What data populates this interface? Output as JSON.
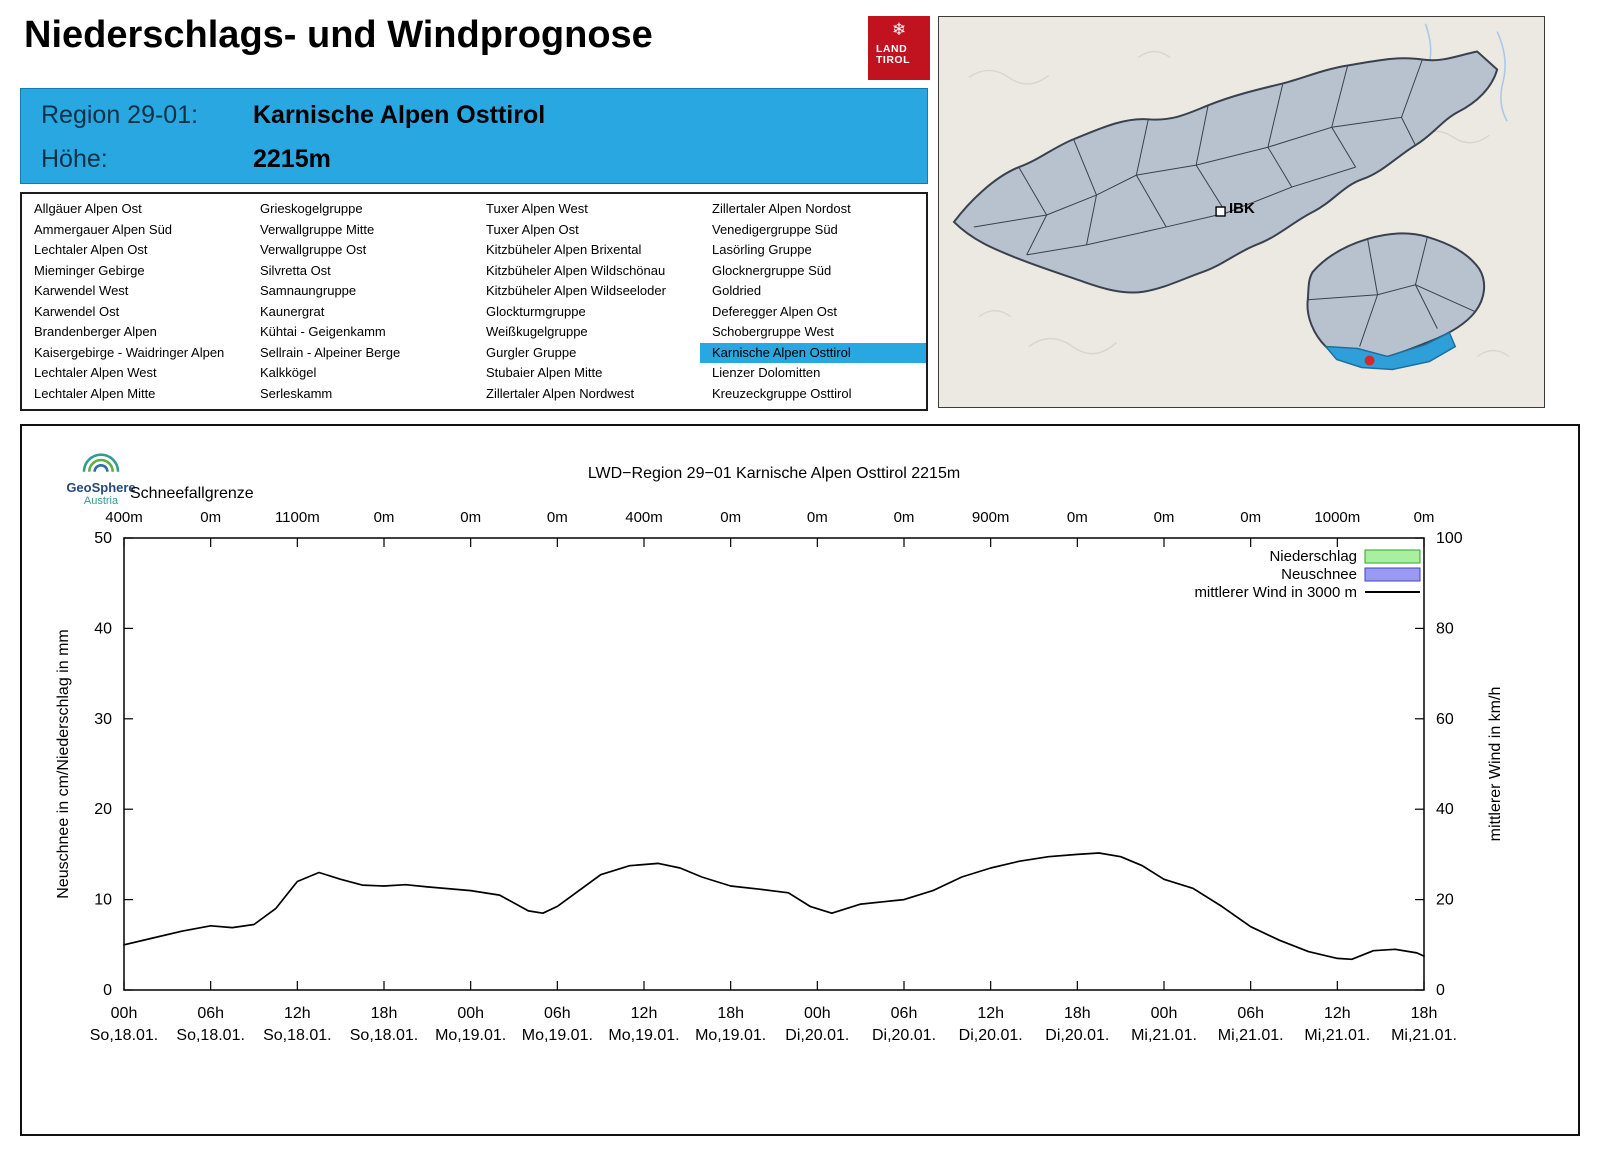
{
  "theme": {
    "accent_blue": "#29a7e0",
    "logo_red": "#c1121f",
    "map_region_fill": "#b8c1ce",
    "map_highlight": "#2f9fd9",
    "selected_dot": "#cf2b2b"
  },
  "page": {
    "title": "Niederschlags- und Windprognose"
  },
  "logo": {
    "land": "LAND",
    "tirol": "TIROL"
  },
  "region_header": {
    "region_label": "Region 29-01:",
    "region_value": "Karnische Alpen Osttirol",
    "hoehe_label": "Höhe:",
    "hoehe_value": "2215m"
  },
  "map": {
    "label_ibk": "IBK"
  },
  "geosphere": {
    "line1": "GeoSphere",
    "line2": "Austria"
  },
  "region_list": {
    "selected": "Karnische Alpen Osttirol",
    "columns": [
      [
        "Allgäuer Alpen Ost",
        "Ammergauer Alpen Süd",
        "Lechtaler Alpen Ost",
        "Mieminger Gebirge",
        "Karwendel West",
        "Karwendel Ost",
        "Brandenberger Alpen",
        "Kaisergebirge - Waidringer Alpen",
        "Lechtaler Alpen West",
        "Lechtaler Alpen Mitte"
      ],
      [
        "Grieskogelgruppe",
        "Verwallgruppe Mitte",
        "Verwallgruppe Ost",
        "Silvretta Ost",
        "Samnaungruppe",
        "Kaunergrat",
        "Kühtai - Geigenkamm",
        "Sellrain - Alpeiner Berge",
        "Kalkkögel",
        "Serleskamm"
      ],
      [
        "Tuxer Alpen West",
        "Tuxer Alpen Ost",
        "Kitzbüheler Alpen Brixental",
        "Kitzbüheler Alpen Wildschönau",
        "Kitzbüheler Alpen Wildseeloder",
        "Glockturmgruppe",
        "Weißkugelgruppe",
        "Gurgler Gruppe",
        "Stubaier Alpen Mitte",
        "Zillertaler Alpen Nordwest"
      ],
      [
        "Zillertaler Alpen Nordost",
        "Venedigergruppe Süd",
        "Lasörling Gruppe",
        "Glocknergruppe Süd",
        "Goldried",
        "Deferegger Alpen Ost",
        "Schobergruppe West",
        "Karnische Alpen Osttirol",
        "Lienzer Dolomitten",
        "Kreuzeckgruppe Osttirol"
      ]
    ]
  },
  "chart_data": {
    "type": "line",
    "title": "LWD−Region 29−01 Karnische Alpen Osttirol 2215m",
    "snowline_label": "Schneefallgrenze",
    "snowline_values": [
      "400m",
      "0m",
      "1100m",
      "0m",
      "0m",
      "0m",
      "400m",
      "0m",
      "0m",
      "0m",
      "900m",
      "0m",
      "0m",
      "0m",
      "1000m",
      "0m"
    ],
    "x_tick_times": [
      "00h",
      "06h",
      "12h",
      "18h",
      "00h",
      "06h",
      "12h",
      "18h",
      "00h",
      "06h",
      "12h",
      "18h",
      "00h",
      "06h",
      "12h",
      "18h"
    ],
    "x_tick_dates": [
      "So,18.01.",
      "So,18.01.",
      "So,18.01.",
      "So,18.01.",
      "Mo,19.01.",
      "Mo,19.01.",
      "Mo,19.01.",
      "Mo,19.01.",
      "Di,20.01.",
      "Di,20.01.",
      "Di,20.01.",
      "Di,20.01.",
      "Mi,21.01.",
      "Mi,21.01.",
      "Mi,21.01.",
      "Mi,21.01."
    ],
    "x_hours_range": [
      0,
      90
    ],
    "ylabel_left": "Neuschnee in cm/Niederschlag in mm",
    "ylabel_right": "mittlerer Wind in km/h",
    "ylim_left": [
      0,
      50
    ],
    "ylim_right": [
      0,
      100
    ],
    "yticks_left": [
      0,
      10,
      20,
      30,
      40,
      50
    ],
    "yticks_right": [
      0,
      20,
      40,
      60,
      80,
      100
    ],
    "grid": false,
    "legend_position": "top-right",
    "legend": [
      {
        "label": "Niederschlag",
        "type": "box",
        "fill": "#a8f0a0",
        "stroke": "#35a02a"
      },
      {
        "label": "Neuschnee",
        "type": "box",
        "fill": "#9a9af2",
        "stroke": "#4040c8"
      },
      {
        "label": "mittlerer Wind in 3000 m",
        "type": "line",
        "stroke": "#000000"
      }
    ],
    "series": [
      {
        "name": "Niederschlag",
        "axis": "left",
        "unit": "mm",
        "points": []
      },
      {
        "name": "Neuschnee",
        "axis": "left",
        "unit": "cm",
        "points": []
      },
      {
        "name": "mittlerer Wind in 3000 m",
        "axis": "right",
        "unit": "km/h",
        "points": [
          [
            0,
            10
          ],
          [
            2,
            11.5
          ],
          [
            4,
            13
          ],
          [
            6,
            14.2
          ],
          [
            7.5,
            13.8
          ],
          [
            9,
            14.5
          ],
          [
            10.5,
            18
          ],
          [
            12,
            24
          ],
          [
            13.5,
            26
          ],
          [
            15,
            24.5
          ],
          [
            16.5,
            23.2
          ],
          [
            18,
            23
          ],
          [
            19.5,
            23.3
          ],
          [
            21,
            22.8
          ],
          [
            24,
            22
          ],
          [
            26,
            21
          ],
          [
            28,
            17.5
          ],
          [
            29,
            17
          ],
          [
            30,
            18.5
          ],
          [
            31.5,
            22
          ],
          [
            33,
            25.5
          ],
          [
            35,
            27.5
          ],
          [
            37,
            28
          ],
          [
            38.5,
            27
          ],
          [
            40,
            25
          ],
          [
            42,
            23
          ],
          [
            44,
            22.3
          ],
          [
            46,
            21.5
          ],
          [
            47.5,
            18.5
          ],
          [
            49,
            17
          ],
          [
            51,
            19
          ],
          [
            54,
            20
          ],
          [
            56,
            22
          ],
          [
            58,
            25
          ],
          [
            60,
            27
          ],
          [
            62,
            28.5
          ],
          [
            64,
            29.5
          ],
          [
            66,
            30
          ],
          [
            67.5,
            30.3
          ],
          [
            69,
            29.5
          ],
          [
            70.5,
            27.5
          ],
          [
            72,
            24.5
          ],
          [
            74,
            22.5
          ],
          [
            76,
            18.5
          ],
          [
            78,
            14
          ],
          [
            80,
            11
          ],
          [
            82,
            8.5
          ],
          [
            84,
            7
          ],
          [
            85,
            6.8
          ],
          [
            86.5,
            8.7
          ],
          [
            88,
            9
          ],
          [
            89.5,
            8.2
          ],
          [
            90,
            7.5
          ]
        ]
      }
    ]
  }
}
